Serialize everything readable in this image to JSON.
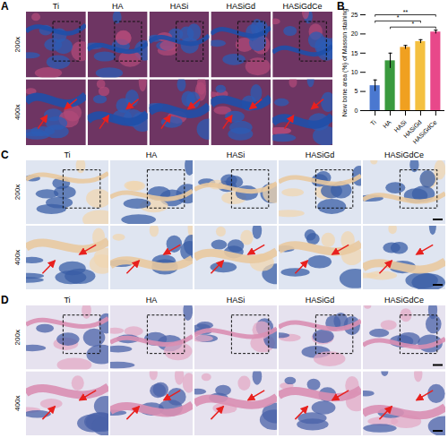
{
  "panels": [
    {
      "label": "A",
      "columns": [
        "Ti",
        "HA",
        "HASi",
        "HASiGd",
        "HASiGdCe"
      ],
      "rows": [
        "200x",
        "400x"
      ]
    },
    {
      "label": "C",
      "columns": [
        "Ti",
        "HA",
        "HASi",
        "HASiGd",
        "HASiGdCe"
      ],
      "rows": [
        "200x",
        "400x"
      ]
    },
    {
      "label": "D",
      "columns": [
        "Ti",
        "HA",
        "HASi",
        "HASiGd",
        "HASiGdCe"
      ],
      "rows": [
        "200x",
        "400x"
      ]
    }
  ],
  "chart_data": {
    "panel": "B",
    "type": "bar",
    "y_label": "New bone area (%) of Masson staining",
    "categories": [
      "Ti",
      "HA",
      "HASi",
      "HASiGd",
      "HASiGdCe"
    ],
    "values": [
      6.5,
      13,
      16.5,
      18,
      20.5
    ],
    "errors": [
      1.5,
      2,
      0.5,
      0.5,
      0.5
    ],
    "colors": [
      "#4a78d0",
      "#3a9a3e",
      "#f0a020",
      "#f4c040",
      "#e8488a"
    ],
    "ylim": [
      0,
      25
    ],
    "yticks": [
      0,
      5,
      10,
      15,
      20,
      25
    ],
    "significance": [
      {
        "from": "HA",
        "to": "HASiGdCe",
        "label": "*"
      },
      {
        "from": "Ti",
        "to": "HASiGd",
        "label": "*"
      },
      {
        "from": "Ti",
        "to": "HASiGdCe",
        "label": "**"
      }
    ]
  }
}
